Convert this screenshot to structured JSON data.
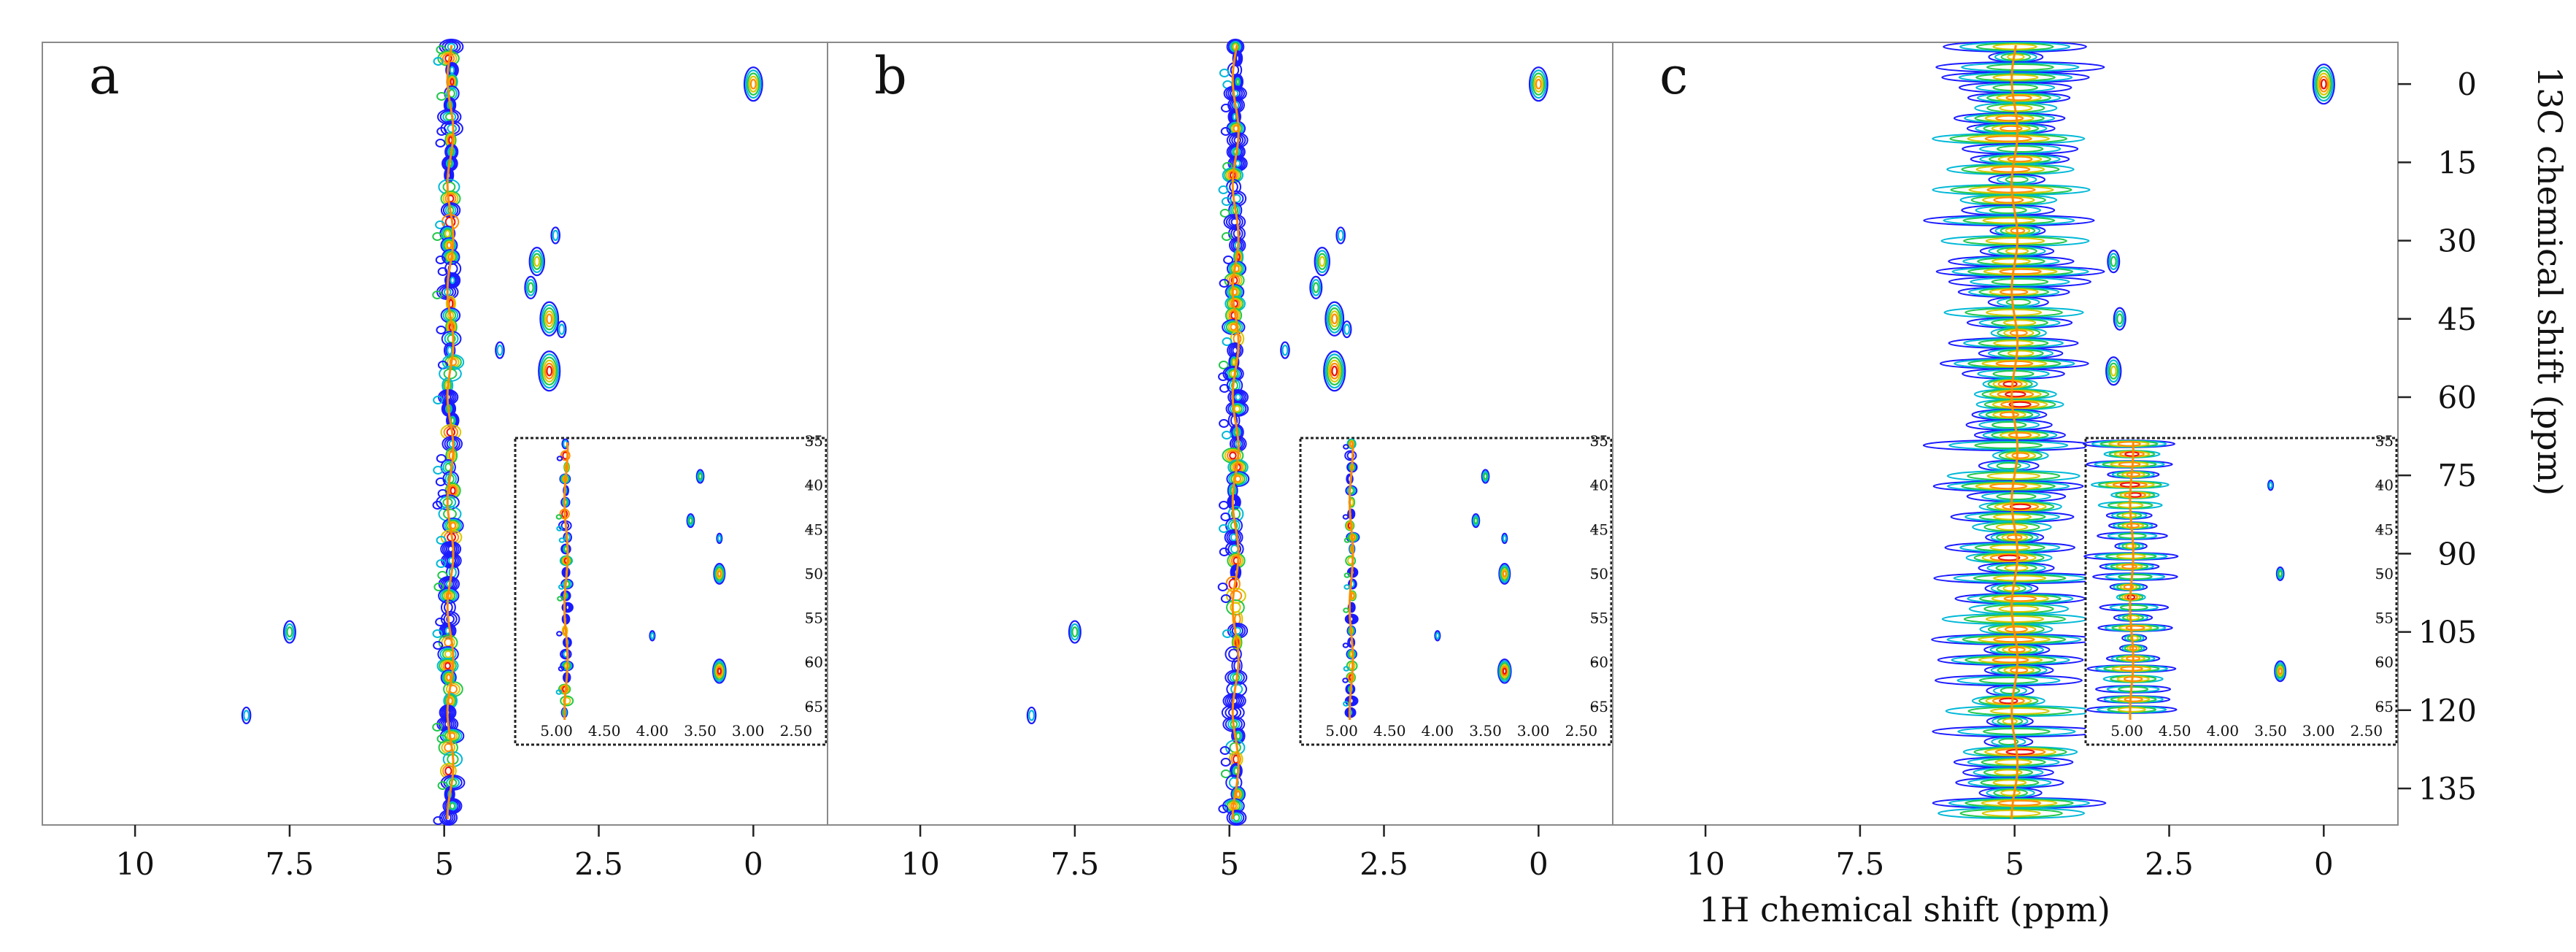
{
  "chart_data": {
    "type": "heatmap",
    "subtype": "2D HSQC NMR contour plot",
    "xlabel": "1H chemical shift (ppm)",
    "ylabel": "13C chemical shift (ppm)",
    "x_axis_reversed": true,
    "y_axis_reversed": true,
    "xlim": [
      11.5,
      -1.2
    ],
    "ylim": [
      -8,
      142
    ],
    "x_ticks": [
      10,
      7.5,
      5,
      2.5,
      0
    ],
    "x_tick_labels": [
      "10",
      "7.5",
      "5",
      "2.5",
      "0"
    ],
    "y_ticks": [
      0,
      15,
      30,
      45,
      60,
      75,
      90,
      105,
      120,
      135
    ],
    "y_tick_labels": [
      "0",
      "15",
      "30",
      "45",
      "60",
      "75",
      "90",
      "105",
      "120",
      "135"
    ],
    "inset": {
      "xlim": [
        5.4,
        2.4
      ],
      "ylim": [
        35,
        66
      ],
      "x_ticks": [
        5.0,
        4.5,
        4.0,
        3.5,
        3.0,
        2.5
      ],
      "x_tick_labels": [
        "5.00",
        "4.50",
        "4.00",
        "3.50",
        "3.00",
        "2.50"
      ],
      "y_ticks": [
        35,
        40,
        45,
        50,
        55,
        60,
        65
      ],
      "y_tick_labels": [
        "35",
        "40",
        "45",
        "50",
        "55",
        "60",
        "65"
      ]
    },
    "contour_colors": [
      "#1a1aff",
      "#00b8d8",
      "#22c84a",
      "#d8c800",
      "#ff8c00",
      "#e81010"
    ],
    "panels": [
      {
        "label": "a",
        "water_ridge_ppm": 4.9,
        "ridge_broad": false,
        "peaks": [
          {
            "x": 0.0,
            "y": 0,
            "level": 4
          },
          {
            "x": 3.2,
            "y": 29,
            "level": 1
          },
          {
            "x": 3.5,
            "y": 34,
            "level": 3
          },
          {
            "x": 3.6,
            "y": 39,
            "level": 2
          },
          {
            "x": 3.3,
            "y": 45,
            "level": 4
          },
          {
            "x": 3.1,
            "y": 47,
            "level": 1
          },
          {
            "x": 4.1,
            "y": 51,
            "level": 1
          },
          {
            "x": 3.3,
            "y": 55,
            "level": 5
          },
          {
            "x": 7.5,
            "y": 105,
            "level": 2
          },
          {
            "x": 8.2,
            "y": 121,
            "level": 1
          }
        ],
        "inset_peaks": [
          {
            "x": 3.5,
            "y": 39,
            "level": 2
          },
          {
            "x": 3.6,
            "y": 44,
            "level": 2
          },
          {
            "x": 3.3,
            "y": 46,
            "level": 1
          },
          {
            "x": 3.3,
            "y": 50,
            "level": 4
          },
          {
            "x": 4.0,
            "y": 57,
            "level": 1
          },
          {
            "x": 3.3,
            "y": 61,
            "level": 5
          }
        ]
      },
      {
        "label": "b",
        "water_ridge_ppm": 4.9,
        "ridge_broad": false,
        "peaks": [
          {
            "x": 0.0,
            "y": 0,
            "level": 4
          },
          {
            "x": 3.2,
            "y": 29,
            "level": 1
          },
          {
            "x": 3.5,
            "y": 34,
            "level": 3
          },
          {
            "x": 3.6,
            "y": 39,
            "level": 2
          },
          {
            "x": 3.3,
            "y": 45,
            "level": 4
          },
          {
            "x": 3.1,
            "y": 47,
            "level": 1
          },
          {
            "x": 4.1,
            "y": 51,
            "level": 1
          },
          {
            "x": 3.3,
            "y": 55,
            "level": 5
          },
          {
            "x": 7.5,
            "y": 105,
            "level": 2
          },
          {
            "x": 8.2,
            "y": 121,
            "level": 1
          }
        ],
        "inset_peaks": [
          {
            "x": 3.5,
            "y": 39,
            "level": 2
          },
          {
            "x": 3.6,
            "y": 44,
            "level": 2
          },
          {
            "x": 3.3,
            "y": 46,
            "level": 1
          },
          {
            "x": 3.3,
            "y": 50,
            "level": 4
          },
          {
            "x": 4.0,
            "y": 57,
            "level": 1
          },
          {
            "x": 3.3,
            "y": 61,
            "level": 5
          }
        ]
      },
      {
        "label": "c",
        "water_ridge_ppm": 5.0,
        "ridge_broad": true,
        "peaks": [
          {
            "x": 0.0,
            "y": 0,
            "level": 5
          },
          {
            "x": 3.4,
            "y": 34,
            "level": 2
          },
          {
            "x": 3.3,
            "y": 45,
            "level": 2
          },
          {
            "x": 3.4,
            "y": 55,
            "level": 3
          }
        ],
        "inset_peaks": [
          {
            "x": 3.5,
            "y": 40,
            "level": 1
          },
          {
            "x": 3.4,
            "y": 50,
            "level": 2
          },
          {
            "x": 3.4,
            "y": 61,
            "level": 4
          }
        ]
      }
    ]
  }
}
